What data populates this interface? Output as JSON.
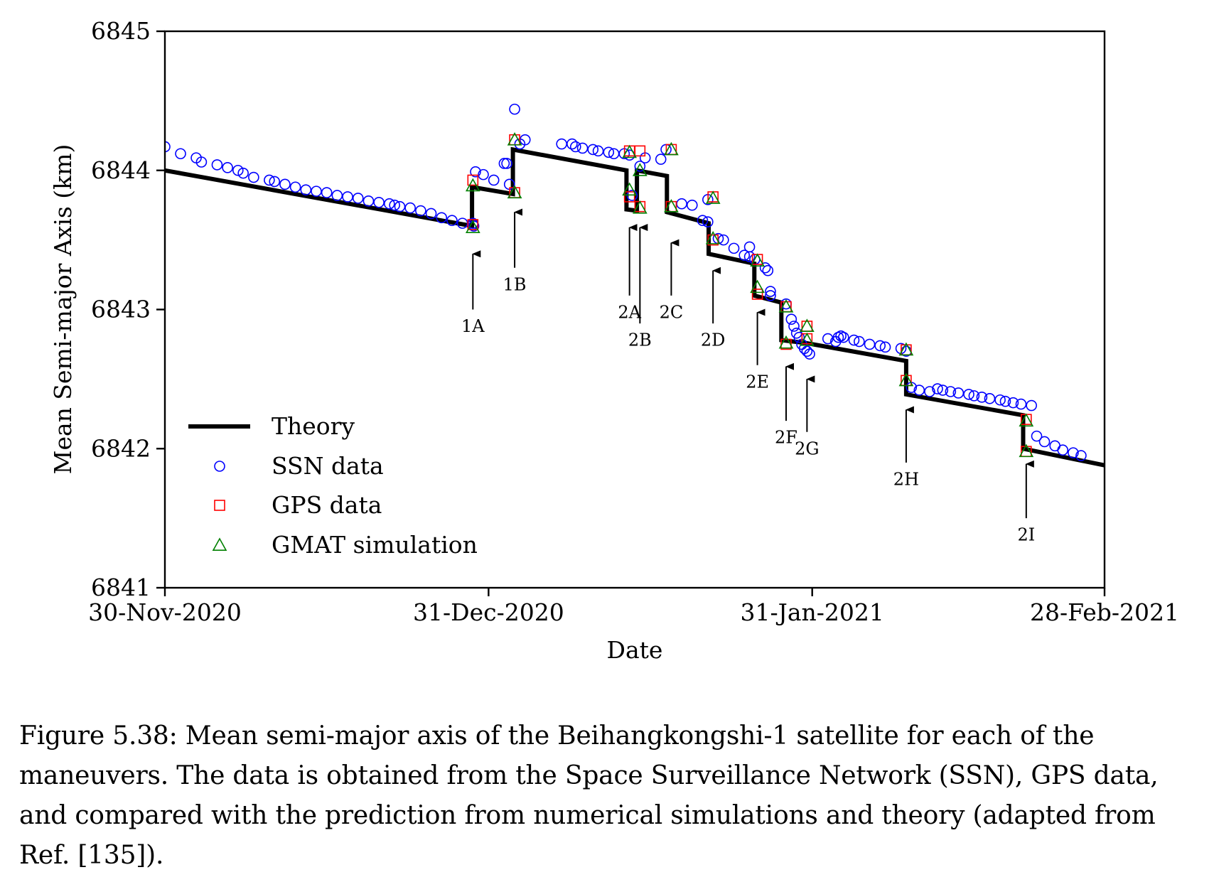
{
  "chart_data": {
    "type": "scatter",
    "xlabel": "Date",
    "ylabel": "Mean Semi-major Axis (km)",
    "xlim": [
      "2020-11-30",
      "2021-02-28"
    ],
    "ylim": [
      6841,
      6845
    ],
    "x_ticks": [
      {
        "date": "2020-11-30",
        "label": "30-Nov-2020"
      },
      {
        "date": "2020-12-31",
        "label": "31-Dec-2020"
      },
      {
        "date": "2021-01-31",
        "label": "31-Jan-2021"
      },
      {
        "date": "2021-02-28",
        "label": "28-Feb-2021"
      }
    ],
    "y_ticks": [
      6841,
      6842,
      6843,
      6844,
      6845
    ],
    "legend_position": "lower-left",
    "series": [
      {
        "name": "Theory",
        "kind": "line",
        "color": "#000000",
        "points": [
          [
            "2020-11-30T00:00",
            6844.0
          ],
          [
            "2020-12-29T10:00",
            6843.6
          ],
          [
            "2020-12-29T10:00",
            6843.88
          ],
          [
            "2021-01-02T08:00",
            6843.83
          ],
          [
            "2021-01-02T08:00",
            6844.15
          ],
          [
            "2021-01-13T05:00",
            6844.0
          ],
          [
            "2021-01-13T05:00",
            6843.72
          ],
          [
            "2021-01-14T05:00",
            6843.71
          ],
          [
            "2021-01-14T05:00",
            6844.0
          ],
          [
            "2021-01-17T02:00",
            6843.96
          ],
          [
            "2021-01-17T02:00",
            6843.7
          ],
          [
            "2021-01-21T02:00",
            6843.62
          ],
          [
            "2021-01-21T02:00",
            6843.4
          ],
          [
            "2021-01-25T11:00",
            6843.33
          ],
          [
            "2021-01-25T11:00",
            6843.1
          ],
          [
            "2021-01-28T01:00",
            6843.05
          ],
          [
            "2021-01-28T01:00",
            6842.78
          ],
          [
            "2021-01-30T08:00",
            6842.76
          ],
          [
            "2021-02-09T00:00",
            6842.63
          ],
          [
            "2021-02-09T00:00",
            6842.39
          ],
          [
            "2021-02-20T05:00",
            6842.24
          ],
          [
            "2021-02-20T05:00",
            6842.0
          ],
          [
            "2021-02-28T00:00",
            6841.88
          ]
        ]
      },
      {
        "name": "SSN data",
        "kind": "marker",
        "marker": "circle",
        "color": "#0000ff",
        "points": [
          [
            "2020-11-30T00:00",
            6844.17
          ],
          [
            "2020-12-01T12:00",
            6844.12
          ],
          [
            "2020-12-03T00:00",
            6844.09
          ],
          [
            "2020-12-03T12:00",
            6844.06
          ],
          [
            "2020-12-05T00:00",
            6844.04
          ],
          [
            "2020-12-06T00:00",
            6844.02
          ],
          [
            "2020-12-07T00:00",
            6844.0
          ],
          [
            "2020-12-07T12:00",
            6843.98
          ],
          [
            "2020-12-08T12:00",
            6843.95
          ],
          [
            "2020-12-10T00:00",
            6843.93
          ],
          [
            "2020-12-10T12:00",
            6843.92
          ],
          [
            "2020-12-11T12:00",
            6843.9
          ],
          [
            "2020-12-12T12:00",
            6843.88
          ],
          [
            "2020-12-13T12:00",
            6843.86
          ],
          [
            "2020-12-14T12:00",
            6843.85
          ],
          [
            "2020-12-15T12:00",
            6843.84
          ],
          [
            "2020-12-16T12:00",
            6843.82
          ],
          [
            "2020-12-17T12:00",
            6843.81
          ],
          [
            "2020-12-18T12:00",
            6843.8
          ],
          [
            "2020-12-19T12:00",
            6843.78
          ],
          [
            "2020-12-20T12:00",
            6843.77
          ],
          [
            "2020-12-21T12:00",
            6843.76
          ],
          [
            "2020-12-22T00:00",
            6843.75
          ],
          [
            "2020-12-22T12:00",
            6843.74
          ],
          [
            "2020-12-23T12:00",
            6843.73
          ],
          [
            "2020-12-24T12:00",
            6843.71
          ],
          [
            "2020-12-25T12:00",
            6843.69
          ],
          [
            "2020-12-26T12:00",
            6843.66
          ],
          [
            "2020-12-27T12:00",
            6843.64
          ],
          [
            "2020-12-28T12:00",
            6843.62
          ],
          [
            "2020-12-29T12:00",
            6843.61
          ],
          [
            "2020-12-29T12:00",
            6843.62
          ],
          [
            "2020-12-29T14:00",
            6843.6
          ],
          [
            "2020-12-29T18:00",
            6843.99
          ],
          [
            "2020-12-30T12:00",
            6843.97
          ],
          [
            "2020-12-31T12:00",
            6843.93
          ],
          [
            "2021-01-01T12:00",
            6844.05
          ],
          [
            "2021-01-01T18:00",
            6844.05
          ],
          [
            "2021-01-02T00:00",
            6843.9
          ],
          [
            "2021-01-02T12:00",
            6844.44
          ],
          [
            "2021-01-03T00:00",
            6844.19
          ],
          [
            "2021-01-03T12:00",
            6844.22
          ],
          [
            "2021-01-07T00:00",
            6844.19
          ],
          [
            "2021-01-08T00:00",
            6844.19
          ],
          [
            "2021-01-08T08:00",
            6844.17
          ],
          [
            "2021-01-09T00:00",
            6844.16
          ],
          [
            "2021-01-10T00:00",
            6844.15
          ],
          [
            "2021-01-10T12:00",
            6844.14
          ],
          [
            "2021-01-11T12:00",
            6844.13
          ],
          [
            "2021-01-12T00:00",
            6844.12
          ],
          [
            "2021-01-13T00:00",
            6844.12
          ],
          [
            "2021-01-13T12:00",
            6844.11
          ],
          [
            "2021-01-13T18:00",
            6843.82
          ],
          [
            "2021-01-14T12:00",
            6844.03
          ],
          [
            "2021-01-15T00:00",
            6844.09
          ],
          [
            "2021-01-16T12:00",
            6844.08
          ],
          [
            "2021-01-17T00:00",
            6844.15
          ],
          [
            "2021-01-18T12:00",
            6843.76
          ],
          [
            "2021-01-19T12:00",
            6843.75
          ],
          [
            "2021-01-20T12:00",
            6843.64
          ],
          [
            "2021-01-21T00:00",
            6843.79
          ],
          [
            "2021-01-21T00:00",
            6843.63
          ],
          [
            "2021-01-22T00:00",
            6843.51
          ],
          [
            "2021-01-22T12:00",
            6843.5
          ],
          [
            "2021-01-23T12:00",
            6843.44
          ],
          [
            "2021-01-24T12:00",
            6843.39
          ],
          [
            "2021-01-25T00:00",
            6843.38
          ],
          [
            "2021-01-25T00:00",
            6843.45
          ],
          [
            "2021-01-25T12:00",
            6843.36
          ],
          [
            "2021-01-26T12:00",
            6843.3
          ],
          [
            "2021-01-26T18:00",
            6843.28
          ],
          [
            "2021-01-27T00:00",
            6843.13
          ],
          [
            "2021-01-27T00:00",
            6843.1
          ],
          [
            "2021-01-28T12:00",
            6843.04
          ],
          [
            "2021-01-29T00:00",
            6842.93
          ],
          [
            "2021-01-29T06:00",
            6842.88
          ],
          [
            "2021-01-29T12:00",
            6842.83
          ],
          [
            "2021-01-29T18:00",
            6842.8
          ],
          [
            "2021-01-30T00:00",
            6842.75
          ],
          [
            "2021-01-30T06:00",
            6842.72
          ],
          [
            "2021-01-30T12:00",
            6842.7
          ],
          [
            "2021-01-30T18:00",
            6842.68
          ],
          [
            "2021-02-01T12:00",
            6842.79
          ],
          [
            "2021-02-02T06:00",
            6842.77
          ],
          [
            "2021-02-02T12:00",
            6842.8
          ],
          [
            "2021-02-02T18:00",
            6842.81
          ],
          [
            "2021-02-03T00:00",
            6842.8
          ],
          [
            "2021-02-04T00:00",
            6842.78
          ],
          [
            "2021-02-04T12:00",
            6842.77
          ],
          [
            "2021-02-05T12:00",
            6842.75
          ],
          [
            "2021-02-06T12:00",
            6842.74
          ],
          [
            "2021-02-07T00:00",
            6842.73
          ],
          [
            "2021-02-08T12:00",
            6842.72
          ],
          [
            "2021-02-09T00:00",
            6842.7
          ],
          [
            "2021-02-09T12:00",
            6842.44
          ],
          [
            "2021-02-10T06:00",
            6842.42
          ],
          [
            "2021-02-11T06:00",
            6842.41
          ],
          [
            "2021-02-12T00:00",
            6842.43
          ],
          [
            "2021-02-12T12:00",
            6842.42
          ],
          [
            "2021-02-13T06:00",
            6842.41
          ],
          [
            "2021-02-14T00:00",
            6842.4
          ],
          [
            "2021-02-15T00:00",
            6842.39
          ],
          [
            "2021-02-15T12:00",
            6842.38
          ],
          [
            "2021-02-16T06:00",
            6842.37
          ],
          [
            "2021-02-17T00:00",
            6842.36
          ],
          [
            "2021-02-18T00:00",
            6842.35
          ],
          [
            "2021-02-18T12:00",
            6842.34
          ],
          [
            "2021-02-19T06:00",
            6842.33
          ],
          [
            "2021-02-20T00:00",
            6842.32
          ],
          [
            "2021-02-21T00:00",
            6842.31
          ],
          [
            "2021-02-21T12:00",
            6842.09
          ],
          [
            "2021-02-22T06:00",
            6842.05
          ],
          [
            "2021-02-23T06:00",
            6842.02
          ],
          [
            "2021-02-24T00:00",
            6841.99
          ],
          [
            "2021-02-25T00:00",
            6841.97
          ],
          [
            "2021-02-25T18:00",
            6841.95
          ]
        ]
      },
      {
        "name": "GPS data",
        "kind": "marker",
        "marker": "square",
        "color": "#ff0000",
        "points": [
          [
            "2020-12-29T12:00",
            6843.93
          ],
          [
            "2020-12-29T12:00",
            6843.61
          ],
          [
            "2021-01-02T12:00",
            6844.22
          ],
          [
            "2021-01-02T12:00",
            6843.84
          ],
          [
            "2021-01-13T12:00",
            6844.14
          ],
          [
            "2021-01-13T12:00",
            6843.81
          ],
          [
            "2021-01-14T12:00",
            6844.14
          ],
          [
            "2021-01-14T12:00",
            6843.74
          ],
          [
            "2021-01-17T12:00",
            6844.15
          ],
          [
            "2021-01-17T12:00",
            6843.74
          ],
          [
            "2021-01-21T12:00",
            6843.81
          ],
          [
            "2021-01-21T12:00",
            6843.5
          ],
          [
            "2021-01-25T18:00",
            6843.36
          ],
          [
            "2021-01-25T18:00",
            6843.11
          ],
          [
            "2021-01-28T12:00",
            6843.02
          ],
          [
            "2021-01-28T12:00",
            6842.75
          ],
          [
            "2021-01-30T12:00",
            6842.88
          ],
          [
            "2021-01-30T12:00",
            6842.79
          ],
          [
            "2021-02-09T00:00",
            6842.71
          ],
          [
            "2021-02-09T00:00",
            6842.49
          ],
          [
            "2021-02-20T12:00",
            6842.21
          ],
          [
            "2021-02-20T12:00",
            6841.98
          ]
        ]
      },
      {
        "name": "GMAT simulation",
        "kind": "marker",
        "marker": "triangle",
        "color": "#008000",
        "points": [
          [
            "2020-12-29T12:00",
            6843.89
          ],
          [
            "2020-12-29T12:00",
            6843.59
          ],
          [
            "2021-01-02T12:00",
            6844.22
          ],
          [
            "2021-01-02T12:00",
            6843.84
          ],
          [
            "2021-01-13T12:00",
            6844.13
          ],
          [
            "2021-01-13T12:00",
            6843.86
          ],
          [
            "2021-01-14T12:00",
            6844.0
          ],
          [
            "2021-01-14T12:00",
            6843.73
          ],
          [
            "2021-01-17T12:00",
            6844.15
          ],
          [
            "2021-01-17T12:00",
            6843.74
          ],
          [
            "2021-01-21T12:00",
            6843.8
          ],
          [
            "2021-01-21T12:00",
            6843.51
          ],
          [
            "2021-01-25T18:00",
            6843.35
          ],
          [
            "2021-01-25T18:00",
            6843.16
          ],
          [
            "2021-01-28T12:00",
            6843.02
          ],
          [
            "2021-01-28T12:00",
            6842.76
          ],
          [
            "2021-01-30T12:00",
            6842.88
          ],
          [
            "2021-01-30T12:00",
            6842.78
          ],
          [
            "2021-02-09T00:00",
            6842.71
          ],
          [
            "2021-02-09T00:00",
            6842.49
          ],
          [
            "2021-02-20T12:00",
            6842.2
          ],
          [
            "2021-02-20T12:00",
            6841.98
          ]
        ]
      }
    ],
    "annotations": [
      {
        "label": "1A",
        "date": "2020-12-29T12:00",
        "tip": 6843.41,
        "tail": 6843.0,
        "label_y": 6842.88
      },
      {
        "label": "1B",
        "date": "2021-01-02T12:00",
        "tip": 6843.71,
        "tail": 6843.3,
        "label_y": 6843.18
      },
      {
        "label": "2A",
        "date": "2021-01-13T12:00",
        "tip": 6843.6,
        "tail": 6843.1,
        "label_y": 6842.98
      },
      {
        "label": "2B",
        "date": "2021-01-14T12:00",
        "tip": 6843.6,
        "tail": 6842.9,
        "label_y": 6842.78
      },
      {
        "label": "2C",
        "date": "2021-01-17T12:00",
        "tip": 6843.49,
        "tail": 6843.1,
        "label_y": 6842.98
      },
      {
        "label": "2D",
        "date": "2021-01-21T12:00",
        "tip": 6843.29,
        "tail": 6842.9,
        "label_y": 6842.78
      },
      {
        "label": "2E",
        "date": "2021-01-25T18:00",
        "tip": 6842.99,
        "tail": 6842.6,
        "label_y": 6842.48
      },
      {
        "label": "2F",
        "date": "2021-01-28T12:00",
        "tip": 6842.6,
        "tail": 6842.2,
        "label_y": 6842.08
      },
      {
        "label": "2G",
        "date": "2021-01-30T12:00",
        "tip": 6842.51,
        "tail": 6842.12,
        "label_y": 6842.0
      },
      {
        "label": "2H",
        "date": "2021-02-09T00:00",
        "tip": 6842.29,
        "tail": 6841.9,
        "label_y": 6841.78
      },
      {
        "label": "2I",
        "date": "2021-02-20T12:00",
        "tip": 6841.9,
        "tail": 6841.5,
        "label_y": 6841.38
      }
    ]
  },
  "caption": "Figure 5.38:  Mean semi-major axis of the Beihangkongshi-1 satellite for each of the maneuvers. The data is obtained from the Space Surveillance Network (SSN), GPS data, and compared with the prediction from numerical simulations and theory (adapted from Ref. [135])."
}
